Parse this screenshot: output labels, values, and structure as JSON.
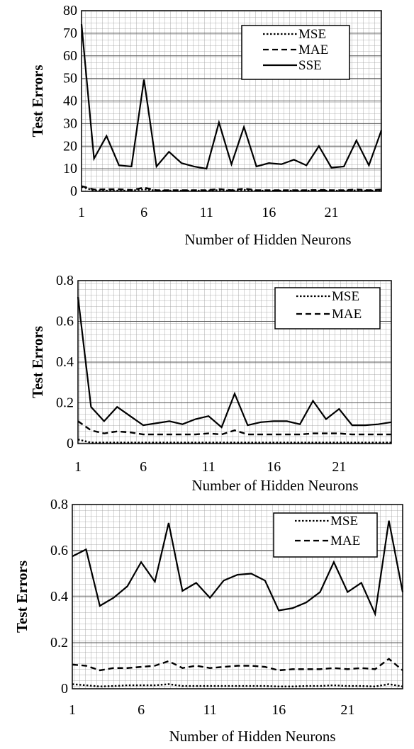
{
  "chart_data": [
    {
      "type": "line",
      "xlabel": "Number of Hidden Neurons",
      "ylabel": "Test Errors",
      "xlim": [
        1,
        25
      ],
      "ylim": [
        0,
        80
      ],
      "x_ticks": [
        1,
        6,
        11,
        16,
        21
      ],
      "y_ticks": [
        0,
        10,
        20,
        30,
        40,
        50,
        60,
        70,
        80
      ],
      "grid": true,
      "legend_position": "top-right",
      "x": [
        1,
        2,
        3,
        4,
        5,
        6,
        7,
        8,
        9,
        10,
        11,
        12,
        13,
        14,
        15,
        16,
        17,
        18,
        19,
        20,
        21,
        22,
        23,
        24,
        25
      ],
      "series": [
        {
          "name": "MSE",
          "style": "dotted",
          "values": [
            2.0,
            0.4,
            0.3,
            0.3,
            0.3,
            0.9,
            0.3,
            0.3,
            0.3,
            0.3,
            0.3,
            0.5,
            0.3,
            0.6,
            0.3,
            0.3,
            0.3,
            0.3,
            0.3,
            0.3,
            0.3,
            0.3,
            0.4,
            0.3,
            0.4
          ]
        },
        {
          "name": "MAE",
          "style": "dashed",
          "values": [
            2.3,
            0.8,
            0.9,
            0.9,
            0.6,
            1.6,
            0.5,
            0.5,
            0.5,
            0.5,
            0.5,
            1.0,
            0.5,
            1.2,
            0.5,
            0.5,
            0.5,
            0.5,
            0.5,
            0.6,
            0.5,
            0.5,
            0.8,
            0.5,
            0.8
          ]
        },
        {
          "name": "SSE",
          "style": "solid",
          "values": [
            74,
            14.5,
            24.5,
            11.5,
            11,
            49.5,
            11,
            17.5,
            12.5,
            11,
            10,
            30.5,
            12,
            28.5,
            11,
            12.5,
            12,
            14,
            11.5,
            20,
            10.5,
            11,
            22.5,
            11.5,
            27
          ]
        }
      ]
    },
    {
      "type": "line",
      "xlabel": "Number of Hidden Neurons",
      "ylabel": "Test Errors",
      "xlim": [
        1,
        25
      ],
      "ylim": [
        0,
        0.8
      ],
      "x_ticks": [
        1,
        6,
        11,
        16,
        21
      ],
      "y_ticks": [
        "0",
        "0.2",
        "0.4",
        "0.6",
        "0.8"
      ],
      "grid": true,
      "legend_position": "top-right",
      "x": [
        1,
        2,
        3,
        4,
        5,
        6,
        7,
        8,
        9,
        10,
        11,
        12,
        13,
        14,
        15,
        16,
        17,
        18,
        19,
        20,
        21,
        22,
        23,
        24,
        25
      ],
      "series": [
        {
          "name": "MSE",
          "style": "dotted",
          "values": [
            0.02,
            0.005,
            0.005,
            0.005,
            0.005,
            0.005,
            0.005,
            0.005,
            0.005,
            0.005,
            0.005,
            0.005,
            0.005,
            0.005,
            0.005,
            0.005,
            0.005,
            0.005,
            0.005,
            0.005,
            0.005,
            0.005,
            0.005,
            0.005,
            0.005
          ]
        },
        {
          "name": "MAE",
          "style": "dashed",
          "values": [
            0.11,
            0.065,
            0.05,
            0.06,
            0.055,
            0.045,
            0.045,
            0.045,
            0.045,
            0.045,
            0.05,
            0.045,
            0.065,
            0.045,
            0.045,
            0.045,
            0.045,
            0.045,
            0.05,
            0.05,
            0.05,
            0.045,
            0.045,
            0.045,
            0.045
          ]
        },
        {
          "name": "",
          "style": "solid",
          "values": [
            0.72,
            0.18,
            0.11,
            0.18,
            0.135,
            0.09,
            0.1,
            0.11,
            0.095,
            0.12,
            0.135,
            0.08,
            0.245,
            0.09,
            0.105,
            0.11,
            0.11,
            0.095,
            0.21,
            0.12,
            0.17,
            0.09,
            0.09,
            0.095,
            0.105
          ]
        }
      ]
    },
    {
      "type": "line",
      "xlabel": "Number of Hidden Neurons",
      "ylabel": "Test Errors",
      "xlim": [
        1,
        25
      ],
      "ylim": [
        0,
        0.8
      ],
      "x_ticks": [
        1,
        6,
        11,
        16,
        21
      ],
      "y_ticks": [
        "0",
        "0.2",
        "0.4",
        "0.6",
        "0.8"
      ],
      "grid": true,
      "legend_position": "top-right",
      "x": [
        1,
        2,
        3,
        4,
        5,
        6,
        7,
        8,
        9,
        10,
        11,
        12,
        13,
        14,
        15,
        16,
        17,
        18,
        19,
        20,
        21,
        22,
        23,
        24,
        25
      ],
      "series": [
        {
          "name": "MSE",
          "style": "dotted",
          "values": [
            0.02,
            0.015,
            0.01,
            0.012,
            0.015,
            0.015,
            0.015,
            0.02,
            0.012,
            0.012,
            0.012,
            0.012,
            0.012,
            0.012,
            0.012,
            0.01,
            0.01,
            0.012,
            0.012,
            0.015,
            0.012,
            0.012,
            0.01,
            0.02,
            0.01
          ]
        },
        {
          "name": "MAE",
          "style": "dashed",
          "values": [
            0.105,
            0.1,
            0.08,
            0.09,
            0.09,
            0.095,
            0.1,
            0.12,
            0.09,
            0.1,
            0.09,
            0.095,
            0.1,
            0.1,
            0.095,
            0.08,
            0.085,
            0.085,
            0.085,
            0.09,
            0.085,
            0.09,
            0.085,
            0.13,
            0.08
          ]
        },
        {
          "name": "",
          "style": "solid",
          "values": [
            0.575,
            0.605,
            0.36,
            0.395,
            0.445,
            0.55,
            0.465,
            0.72,
            0.425,
            0.46,
            0.395,
            0.47,
            0.495,
            0.5,
            0.47,
            0.34,
            0.35,
            0.375,
            0.42,
            0.55,
            0.42,
            0.46,
            0.325,
            0.73,
            0.42
          ]
        }
      ]
    }
  ]
}
